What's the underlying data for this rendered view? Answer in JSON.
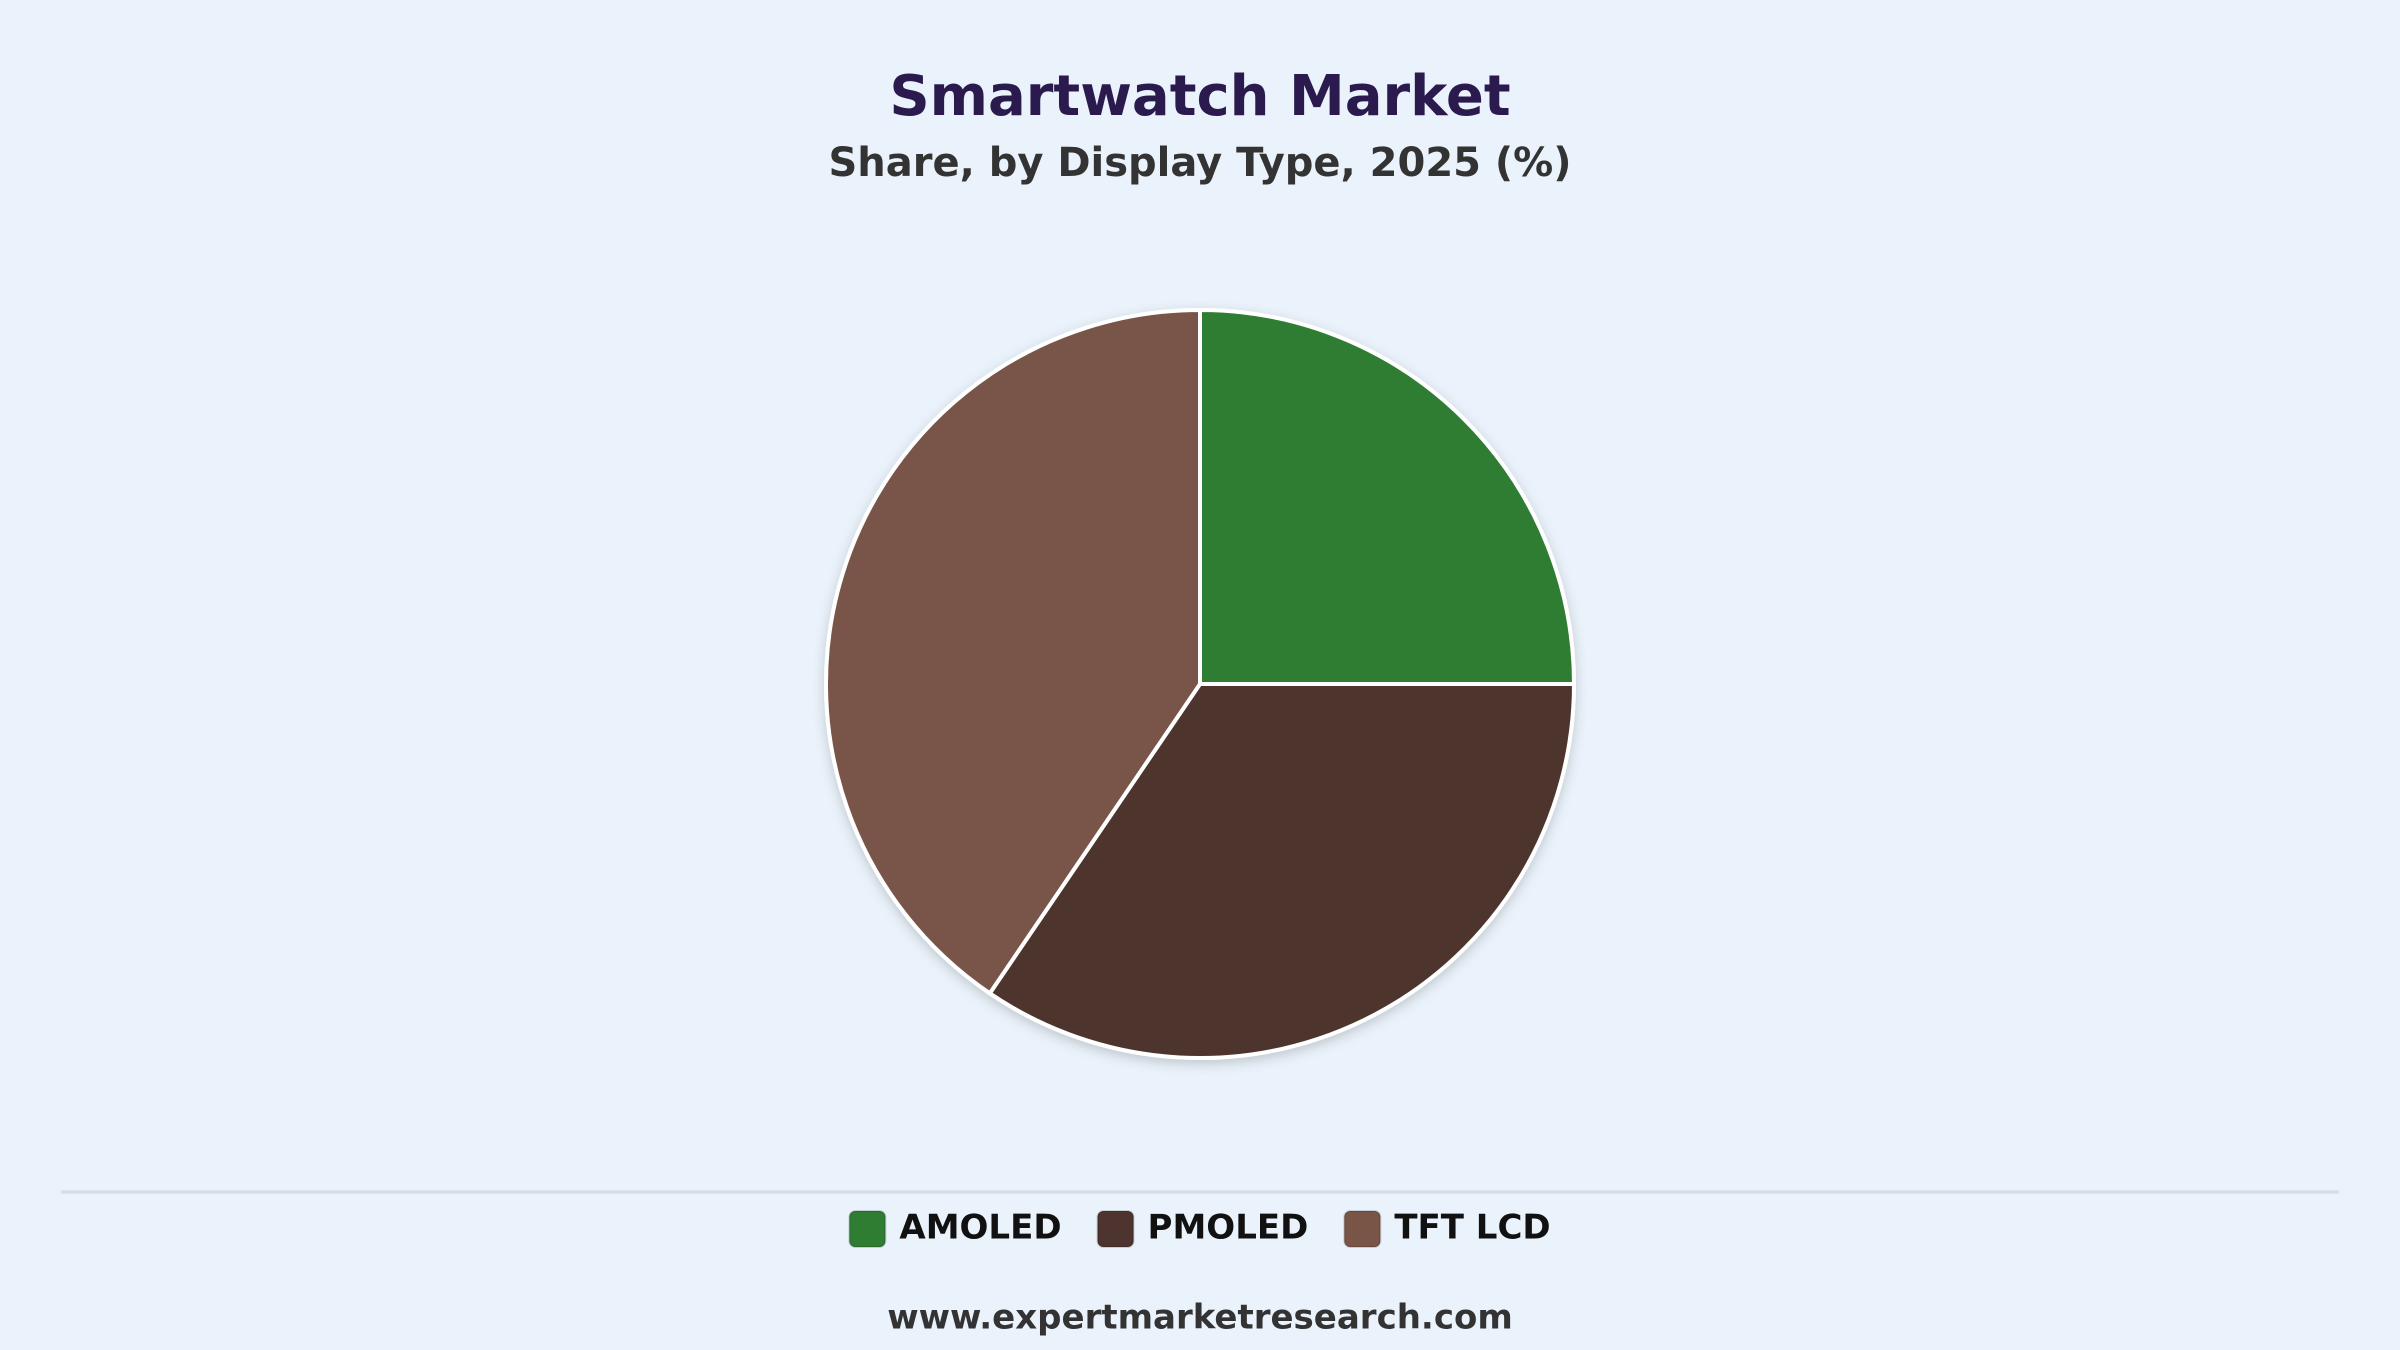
{
  "chart_data": {
    "type": "pie",
    "title": "Smartwatch Market",
    "subtitle": "Share, by Display Type, 2025 (%)",
    "categories": [
      "AMOLED",
      "PMOLED",
      "TFT LCD"
    ],
    "values": [
      25,
      34.5,
      40.5
    ],
    "colors": [
      "#2e7d32",
      "#4e342e",
      "#795548"
    ],
    "legend": "bottom",
    "source": "www.expertmarketresearch.com"
  }
}
